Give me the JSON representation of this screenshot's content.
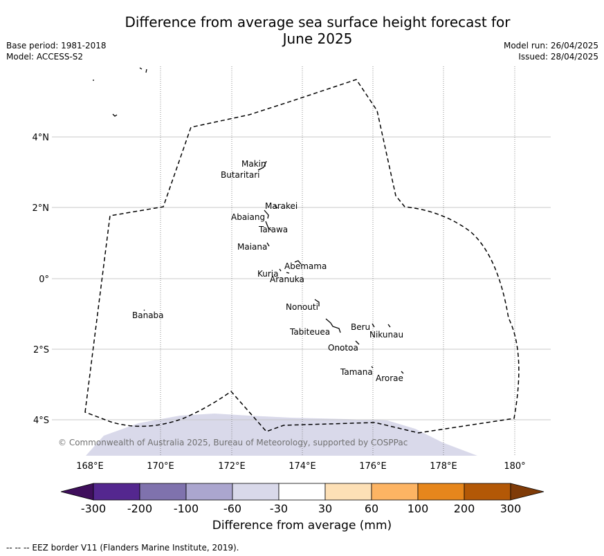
{
  "title_line1": "Difference from average sea surface height forecast for",
  "title_line2": "June 2025",
  "meta_left": {
    "base_period": "Base period: 1981-2018",
    "model": "Model: ACCESS-S2"
  },
  "meta_right": {
    "model_run": "Model run: 26/04/2025",
    "issued": "Issued: 28/04/2025"
  },
  "axes": {
    "lon_ticks": [
      "168°E",
      "170°E",
      "172°E",
      "174°E",
      "176°E",
      "178°E",
      "180°"
    ],
    "lat_ticks": [
      "4°N",
      "2°N",
      "0°",
      "2°S",
      "4°S"
    ]
  },
  "islands": {
    "makin": "Makin",
    "butaritari": "Butaritari",
    "marakei": "Marakei",
    "abaiang": "Abaiang",
    "tarawa": "Tarawa",
    "maiana": "Maiana",
    "abemama": "Abemama",
    "kuria": "Kuria",
    "aranuka": "Aranuka",
    "banaba": "Banaba",
    "nonouti": "Nonouti",
    "tabiteuea": "Tabiteuea",
    "beru": "Beru",
    "nikunau": "Nikunau",
    "onotoa": "Onotoa",
    "tamana": "Tamana",
    "arorae": "Arorae"
  },
  "copyright": "© Commonwealth of Australia 2025, Bureau of Meteorology, supported by COSPPac",
  "colorbar": {
    "tick_labels": [
      "-300",
      "-200",
      "-100",
      "-60",
      "-30",
      "30",
      "60",
      "100",
      "200",
      "300"
    ],
    "colors": [
      "#3f0f5c",
      "#54278f",
      "#7f72ad",
      "#aba6cf",
      "#d9d9ea",
      "#ffffff",
      "#fde0b6",
      "#fdb463",
      "#e6861c",
      "#b35806",
      "#7f3b08"
    ],
    "label": "Difference from average (mm)"
  },
  "footer": "--  --  -- EEZ border V11 (Flanders Marine Institute, 2019)."
}
